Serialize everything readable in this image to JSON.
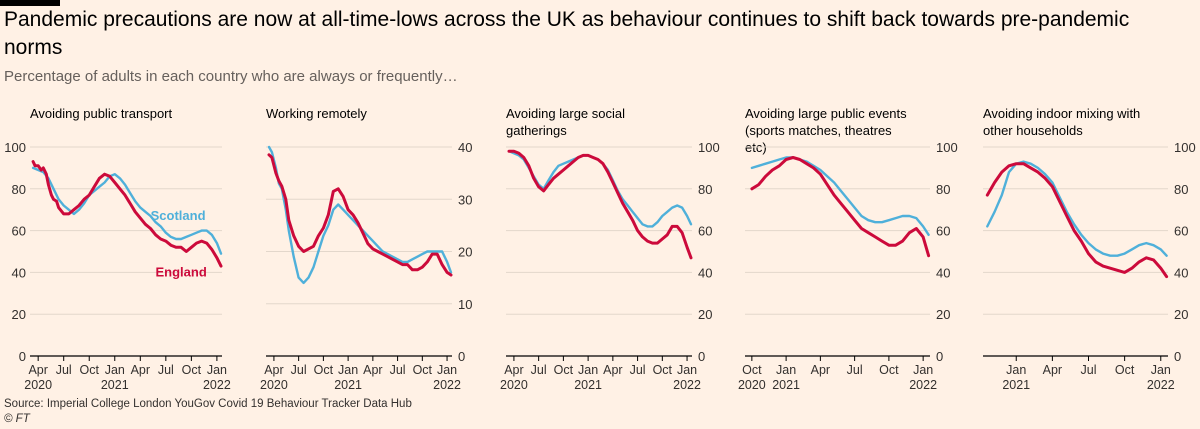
{
  "header": {
    "title": "Pandemic precautions are now at all-time-lows across the UK as behaviour continues to shift back towards pre-pandemic norms",
    "subtitle": "Percentage of adults in each country who are always or frequently…"
  },
  "footer": {
    "source": "Source: Imperial College London YouGov Covid 19 Behaviour Tracker Data Hub",
    "credit": "© FT"
  },
  "colors": {
    "scotland": "#4FB0DA",
    "england": "#CC0A3B",
    "axis": "#000000",
    "grid": "#E3D7CB",
    "tick_text": "#33302E"
  },
  "chart_data": [
    {
      "type": "line",
      "title": "Avoiding public transport",
      "axis_side": "left",
      "xlim": [
        2020.17,
        2022.05
      ],
      "ylim": [
        0,
        100
      ],
      "yticks": [
        0,
        20,
        40,
        60,
        80,
        100
      ],
      "xticks": [
        {
          "x": 2020.25,
          "label": "Apr"
        },
        {
          "x": 2020.5,
          "label": "Jul"
        },
        {
          "x": 2020.75,
          "label": "Oct"
        },
        {
          "x": 2021.0,
          "label": "Jan"
        },
        {
          "x": 2021.25,
          "label": "Apr"
        },
        {
          "x": 2021.5,
          "label": "Jul"
        },
        {
          "x": 2021.75,
          "label": "Oct"
        },
        {
          "x": 2022.0,
          "label": "Jan"
        }
      ],
      "year_labels": [
        {
          "x": 2020.25,
          "label": "2020"
        },
        {
          "x": 2021.0,
          "label": "2021"
        },
        {
          "x": 2022.0,
          "label": "2022"
        }
      ],
      "series_labels": [
        {
          "name": "Scotland",
          "x": 2021.62,
          "y": 65
        },
        {
          "name": "England",
          "x": 2021.65,
          "y": 38
        }
      ],
      "series": [
        {
          "name": "Scotland",
          "x": [
            2020.2,
            2020.25,
            2020.3,
            2020.35,
            2020.4,
            2020.45,
            2020.5,
            2020.55,
            2020.6,
            2020.65,
            2020.7,
            2020.75,
            2020.8,
            2020.85,
            2020.9,
            2020.95,
            2021.0,
            2021.05,
            2021.1,
            2021.15,
            2021.2,
            2021.25,
            2021.3,
            2021.35,
            2021.4,
            2021.45,
            2021.5,
            2021.55,
            2021.6,
            2021.65,
            2021.7,
            2021.75,
            2021.8,
            2021.85,
            2021.9,
            2021.95,
            2022.0,
            2022.04
          ],
          "values": [
            90,
            89,
            88,
            85,
            80,
            75,
            72,
            70,
            68,
            70,
            73,
            77,
            79,
            81,
            83,
            86,
            87,
            85,
            82,
            78,
            74,
            71,
            69,
            67,
            64,
            62,
            59,
            57,
            56,
            56,
            57,
            58,
            59,
            60,
            60,
            58,
            54,
            49
          ]
        },
        {
          "name": "England",
          "x": [
            2020.2,
            2020.22,
            2020.25,
            2020.28,
            2020.3,
            2020.33,
            2020.35,
            2020.38,
            2020.4,
            2020.43,
            2020.45,
            2020.5,
            2020.55,
            2020.6,
            2020.65,
            2020.7,
            2020.75,
            2020.8,
            2020.85,
            2020.9,
            2020.95,
            2021.0,
            2021.05,
            2021.1,
            2021.15,
            2021.2,
            2021.25,
            2021.3,
            2021.35,
            2021.4,
            2021.45,
            2021.5,
            2021.55,
            2021.6,
            2021.65,
            2021.7,
            2021.75,
            2021.8,
            2021.85,
            2021.9,
            2021.95,
            2022.0,
            2022.04
          ],
          "values": [
            93,
            91,
            91,
            89,
            90,
            87,
            82,
            77,
            75,
            74,
            71,
            68,
            68,
            70,
            72,
            75,
            77,
            81,
            85,
            87,
            86,
            83,
            80,
            77,
            73,
            69,
            66,
            63,
            61,
            58,
            56,
            55,
            53,
            52,
            52,
            50,
            52,
            54,
            55,
            54,
            51,
            47,
            43
          ]
        }
      ]
    },
    {
      "type": "line",
      "title": "Working remotely",
      "axis_side": "right",
      "xlim": [
        2020.17,
        2022.05
      ],
      "ylim": [
        0,
        40
      ],
      "yticks": [
        0,
        10,
        20,
        30,
        40
      ],
      "xticks": [
        {
          "x": 2020.25,
          "label": "Apr"
        },
        {
          "x": 2020.5,
          "label": "Jul"
        },
        {
          "x": 2020.75,
          "label": "Oct"
        },
        {
          "x": 2021.0,
          "label": "Jan"
        },
        {
          "x": 2021.25,
          "label": "Apr"
        },
        {
          "x": 2021.5,
          "label": "Jul"
        },
        {
          "x": 2021.75,
          "label": "Oct"
        },
        {
          "x": 2022.0,
          "label": "Jan"
        }
      ],
      "year_labels": [
        {
          "x": 2020.25,
          "label": "2020"
        },
        {
          "x": 2021.0,
          "label": "2021"
        },
        {
          "x": 2022.0,
          "label": "2022"
        }
      ],
      "series_labels": [],
      "series": [
        {
          "name": "Scotland",
          "x": [
            2020.2,
            2020.23,
            2020.27,
            2020.3,
            2020.33,
            2020.37,
            2020.4,
            2020.45,
            2020.5,
            2020.55,
            2020.6,
            2020.65,
            2020.7,
            2020.75,
            2020.8,
            2020.85,
            2020.9,
            2020.95,
            2021.0,
            2021.05,
            2021.1,
            2021.15,
            2021.2,
            2021.25,
            2021.3,
            2021.35,
            2021.4,
            2021.45,
            2021.5,
            2021.55,
            2021.6,
            2021.65,
            2021.7,
            2021.75,
            2021.8,
            2021.85,
            2021.9,
            2021.95,
            2022.0,
            2022.04
          ],
          "values": [
            40,
            39,
            36,
            33,
            32,
            28,
            24,
            19,
            15,
            14,
            15,
            17,
            20,
            23,
            25,
            28,
            29,
            28,
            27,
            26,
            25,
            24,
            23,
            22,
            21,
            20,
            19.5,
            19,
            18.5,
            18,
            18,
            18.5,
            19,
            19.5,
            20,
            20,
            20,
            20,
            18,
            16
          ]
        },
        {
          "name": "England",
          "x": [
            2020.2,
            2020.23,
            2020.27,
            2020.3,
            2020.33,
            2020.37,
            2020.4,
            2020.45,
            2020.5,
            2020.55,
            2020.6,
            2020.65,
            2020.7,
            2020.75,
            2020.8,
            2020.85,
            2020.9,
            2020.95,
            2021.0,
            2021.05,
            2021.1,
            2021.15,
            2021.2,
            2021.25,
            2021.3,
            2021.35,
            2021.4,
            2021.45,
            2021.5,
            2021.55,
            2021.6,
            2021.65,
            2021.7,
            2021.75,
            2021.8,
            2021.85,
            2021.9,
            2021.95,
            2022.0,
            2022.04
          ],
          "values": [
            38.5,
            38,
            35,
            33.5,
            32.5,
            30,
            26,
            23,
            21,
            20,
            20.5,
            21,
            23,
            24.5,
            27,
            31.5,
            32,
            30.5,
            28,
            27,
            25.5,
            23.5,
            21.5,
            20.5,
            20,
            19.5,
            19,
            18.5,
            18,
            17.5,
            17.5,
            16.5,
            16.5,
            17,
            18,
            19.5,
            19.5,
            17.5,
            16,
            15.5
          ]
        }
      ]
    },
    {
      "type": "line",
      "title": "Avoiding large social gatherings",
      "axis_side": "right",
      "xlim": [
        2020.17,
        2022.05
      ],
      "ylim": [
        0,
        100
      ],
      "yticks": [
        0,
        20,
        40,
        60,
        80,
        100
      ],
      "xticks": [
        {
          "x": 2020.25,
          "label": "Apr"
        },
        {
          "x": 2020.5,
          "label": "Jul"
        },
        {
          "x": 2020.75,
          "label": "Oct"
        },
        {
          "x": 2021.0,
          "label": "Jan"
        },
        {
          "x": 2021.25,
          "label": "Apr"
        },
        {
          "x": 2021.5,
          "label": "Jul"
        },
        {
          "x": 2021.75,
          "label": "Oct"
        },
        {
          "x": 2022.0,
          "label": "Jan"
        }
      ],
      "year_labels": [
        {
          "x": 2020.25,
          "label": "2020"
        },
        {
          "x": 2021.0,
          "label": "2021"
        },
        {
          "x": 2022.0,
          "label": "2022"
        }
      ],
      "series_labels": [],
      "series": [
        {
          "name": "Scotland",
          "x": [
            2020.2,
            2020.25,
            2020.3,
            2020.35,
            2020.4,
            2020.45,
            2020.5,
            2020.55,
            2020.6,
            2020.65,
            2020.7,
            2020.75,
            2020.8,
            2020.85,
            2020.9,
            2020.95,
            2021.0,
            2021.05,
            2021.1,
            2021.15,
            2021.2,
            2021.25,
            2021.3,
            2021.35,
            2021.4,
            2021.45,
            2021.5,
            2021.55,
            2021.6,
            2021.65,
            2021.7,
            2021.75,
            2021.8,
            2021.85,
            2021.9,
            2021.95,
            2022.0,
            2022.04
          ],
          "values": [
            98,
            97,
            96,
            94,
            90,
            86,
            82,
            80,
            84,
            88,
            91,
            92,
            93,
            94,
            95,
            96,
            96,
            95,
            94,
            92,
            89,
            84,
            79,
            75,
            72,
            69,
            66,
            63,
            62,
            62,
            64,
            67,
            69,
            71,
            72,
            71,
            67,
            63
          ]
        },
        {
          "name": "England",
          "x": [
            2020.2,
            2020.25,
            2020.3,
            2020.35,
            2020.4,
            2020.45,
            2020.5,
            2020.55,
            2020.6,
            2020.65,
            2020.7,
            2020.75,
            2020.8,
            2020.85,
            2020.9,
            2020.95,
            2021.0,
            2021.05,
            2021.1,
            2021.15,
            2021.2,
            2021.25,
            2021.3,
            2021.35,
            2021.4,
            2021.45,
            2021.5,
            2021.55,
            2021.6,
            2021.65,
            2021.7,
            2021.75,
            2021.8,
            2021.85,
            2021.9,
            2021.95,
            2022.0,
            2022.04
          ],
          "values": [
            98,
            98,
            97,
            95,
            91,
            85,
            81,
            79,
            82,
            85,
            87,
            89,
            91,
            93,
            95,
            96,
            96,
            95,
            94,
            92,
            88,
            83,
            78,
            73,
            69,
            65,
            60,
            57,
            55,
            54,
            54,
            56,
            58,
            62,
            62,
            59,
            52,
            47
          ]
        }
      ]
    },
    {
      "type": "line",
      "title": "Avoiding large public events (sports matches, theatres etc)",
      "axis_side": "right",
      "xlim": [
        2020.7,
        2022.05
      ],
      "ylim": [
        0,
        100
      ],
      "yticks": [
        0,
        20,
        40,
        60,
        80,
        100
      ],
      "xticks": [
        {
          "x": 2020.75,
          "label": "Oct"
        },
        {
          "x": 2021.0,
          "label": "Jan"
        },
        {
          "x": 2021.25,
          "label": "Apr"
        },
        {
          "x": 2021.5,
          "label": "Jul"
        },
        {
          "x": 2021.75,
          "label": "Oct"
        },
        {
          "x": 2022.0,
          "label": "Jan"
        }
      ],
      "year_labels": [
        {
          "x": 2020.75,
          "label": "2020"
        },
        {
          "x": 2021.0,
          "label": "2021"
        },
        {
          "x": 2022.0,
          "label": "2022"
        }
      ],
      "series_labels": [],
      "series": [
        {
          "name": "Scotland",
          "x": [
            2020.75,
            2020.8,
            2020.85,
            2020.9,
            2020.95,
            2021.0,
            2021.05,
            2021.1,
            2021.15,
            2021.2,
            2021.25,
            2021.3,
            2021.35,
            2021.4,
            2021.45,
            2021.5,
            2021.55,
            2021.6,
            2021.65,
            2021.7,
            2021.75,
            2021.8,
            2021.85,
            2021.9,
            2021.95,
            2022.0,
            2022.04
          ],
          "values": [
            90,
            91,
            92,
            93,
            94,
            95,
            95,
            94,
            93,
            91,
            89,
            86,
            83,
            79,
            75,
            71,
            67,
            65,
            64,
            64,
            65,
            66,
            67,
            67,
            66,
            62,
            58
          ]
        },
        {
          "name": "England",
          "x": [
            2020.75,
            2020.8,
            2020.85,
            2020.9,
            2020.95,
            2021.0,
            2021.05,
            2021.1,
            2021.15,
            2021.2,
            2021.25,
            2021.3,
            2021.35,
            2021.4,
            2021.45,
            2021.5,
            2021.55,
            2021.6,
            2021.65,
            2021.7,
            2021.75,
            2021.8,
            2021.85,
            2021.9,
            2021.95,
            2022.0,
            2022.04
          ],
          "values": [
            80,
            82,
            86,
            89,
            91,
            94,
            95,
            94,
            92,
            90,
            87,
            82,
            77,
            73,
            69,
            65,
            61,
            59,
            57,
            55,
            53,
            53,
            55,
            59,
            61,
            57,
            48
          ]
        }
      ]
    },
    {
      "type": "line",
      "title": "Avoiding indoor mixing with other households",
      "axis_side": "right",
      "xlim": [
        2020.77,
        2022.05
      ],
      "ylim": [
        0,
        100
      ],
      "yticks": [
        0,
        20,
        40,
        60,
        80,
        100
      ],
      "xticks": [
        {
          "x": 2021.0,
          "label": "Jan"
        },
        {
          "x": 2021.25,
          "label": "Apr"
        },
        {
          "x": 2021.5,
          "label": "Jul"
        },
        {
          "x": 2021.75,
          "label": "Oct"
        },
        {
          "x": 2022.0,
          "label": "Jan"
        }
      ],
      "year_labels": [
        {
          "x": 2021.0,
          "label": "2021"
        },
        {
          "x": 2022.0,
          "label": "2022"
        }
      ],
      "series_labels": [],
      "series": [
        {
          "name": "Scotland",
          "x": [
            2020.8,
            2020.85,
            2020.9,
            2020.95,
            2021.0,
            2021.05,
            2021.1,
            2021.15,
            2021.2,
            2021.25,
            2021.3,
            2021.35,
            2021.4,
            2021.45,
            2021.5,
            2021.55,
            2021.6,
            2021.65,
            2021.7,
            2021.75,
            2021.8,
            2021.85,
            2021.9,
            2021.95,
            2022.0,
            2022.04
          ],
          "values": [
            62,
            69,
            77,
            88,
            92,
            93,
            92,
            90,
            87,
            83,
            76,
            69,
            63,
            58,
            54,
            51,
            49,
            48,
            48,
            49,
            51,
            53,
            54,
            53,
            51,
            48
          ]
        },
        {
          "name": "England",
          "x": [
            2020.8,
            2020.85,
            2020.9,
            2020.95,
            2021.0,
            2021.05,
            2021.1,
            2021.15,
            2021.2,
            2021.25,
            2021.3,
            2021.35,
            2021.4,
            2021.45,
            2021.5,
            2021.55,
            2021.6,
            2021.65,
            2021.7,
            2021.75,
            2021.8,
            2021.85,
            2021.9,
            2021.95,
            2022.0,
            2022.04
          ],
          "values": [
            77,
            83,
            88,
            91,
            92,
            92,
            90,
            88,
            85,
            81,
            74,
            67,
            60,
            55,
            49,
            45,
            43,
            42,
            41,
            40,
            42,
            45,
            47,
            46,
            42,
            38
          ]
        }
      ]
    }
  ]
}
